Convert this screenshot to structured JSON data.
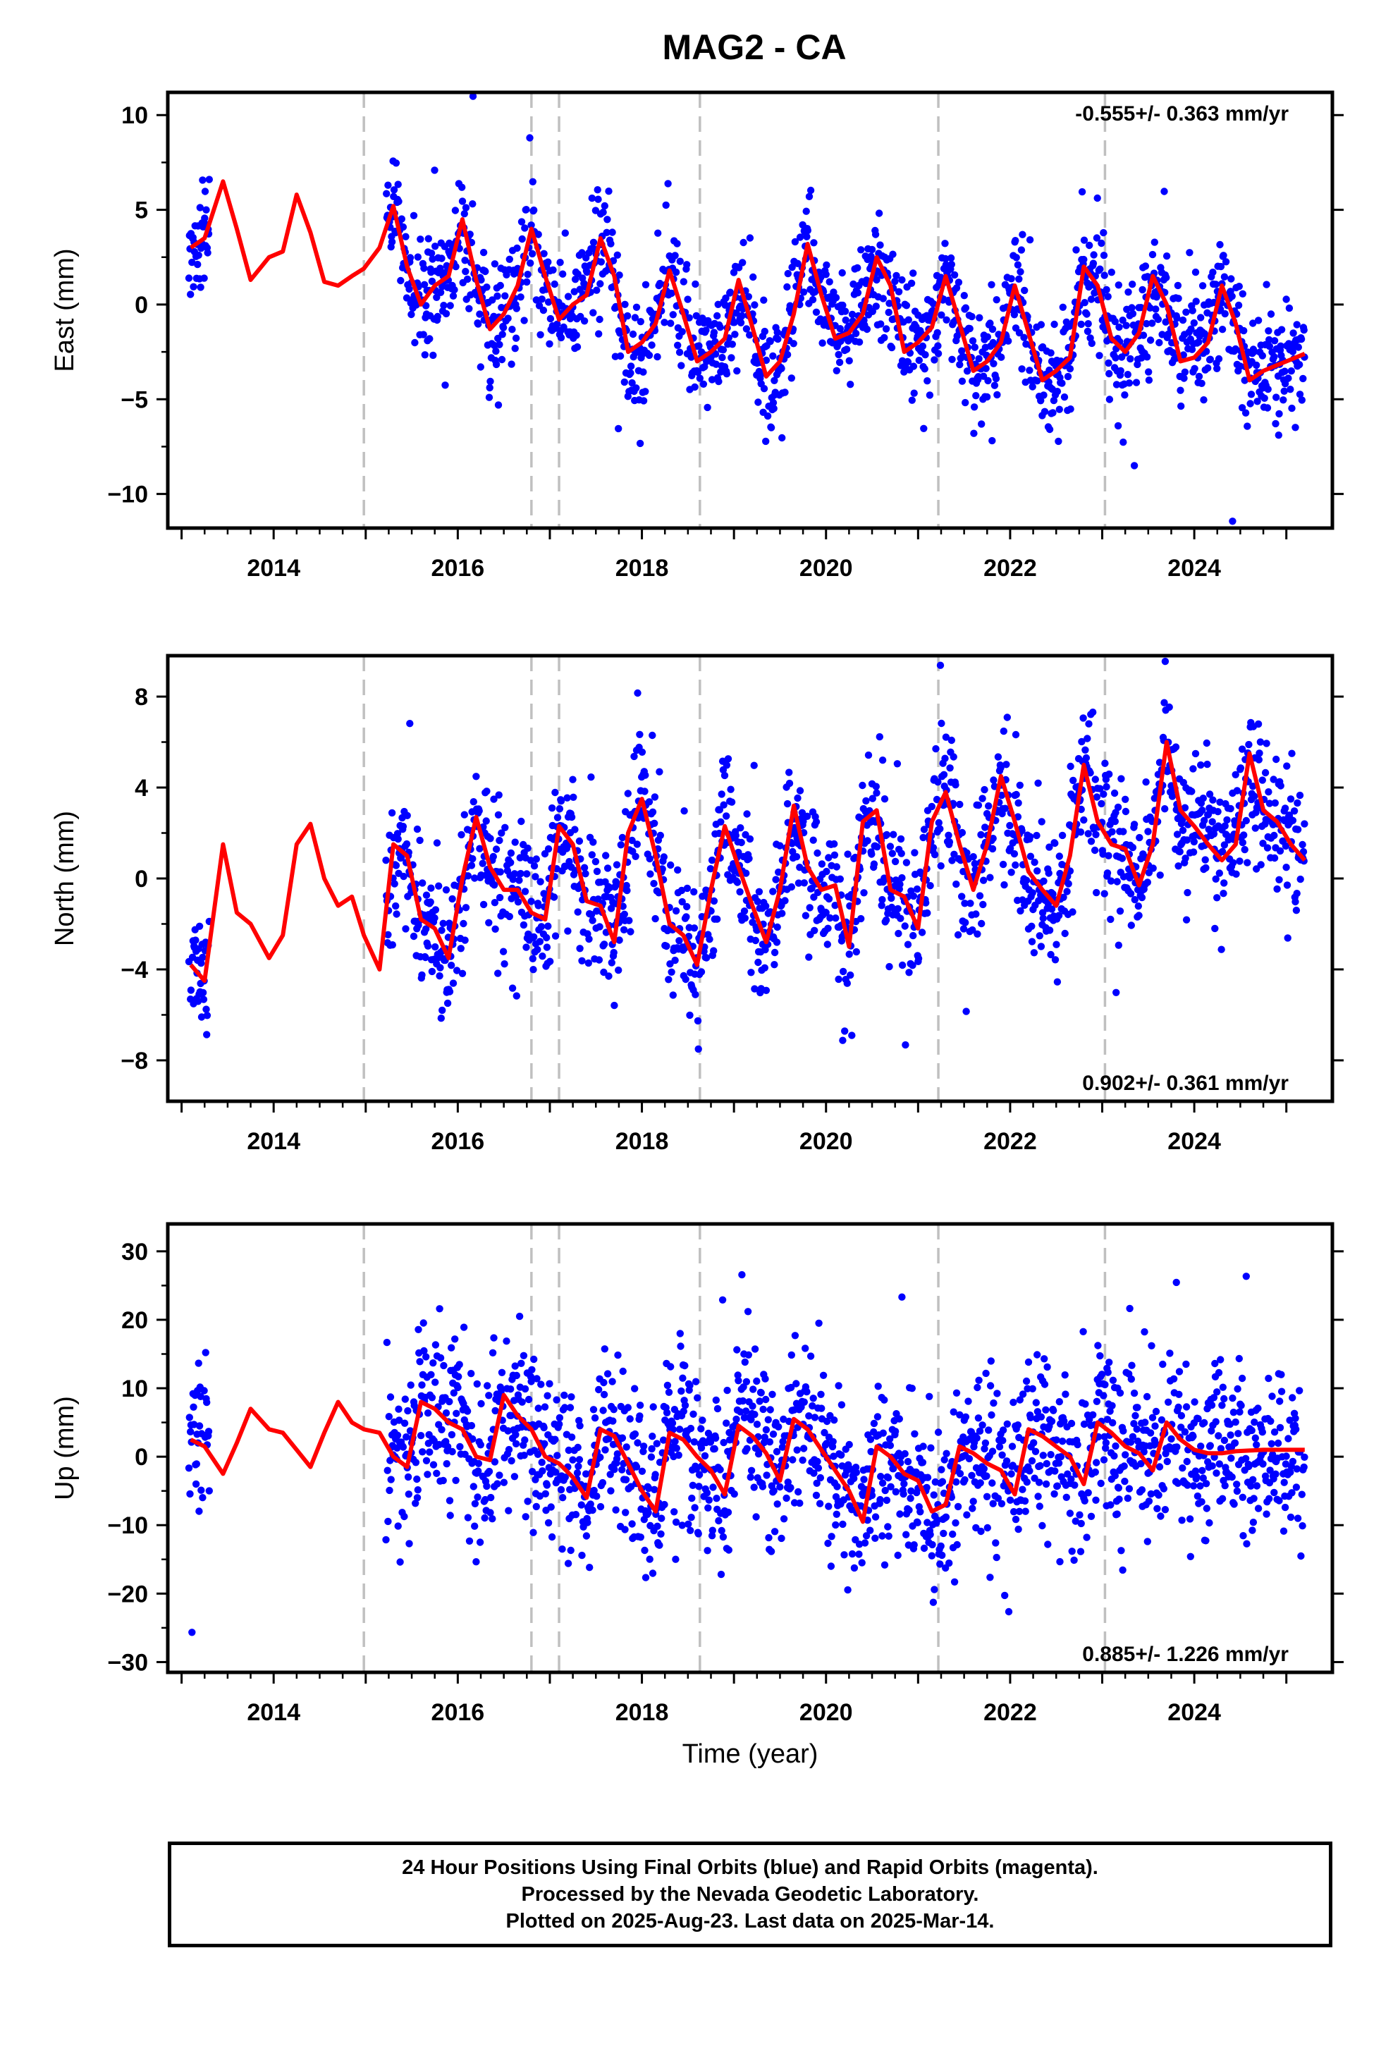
{
  "title": "MAG2 - CA",
  "footer": {
    "line1": "24 Hour Positions Using Final Orbits (blue) and Rapid Orbits (magenta).",
    "line2": "Processed by the Nevada Geodetic Laboratory.",
    "line3": "Plotted on 2025-Aug-23. Last data on 2025-Mar-14."
  },
  "colors": {
    "final_orbits": "#0000ff",
    "model": "#ff0000",
    "steps": "#c0c0c0"
  },
  "chart_data": [
    {
      "type": "scatter",
      "component": "east",
      "ylabel": "East (mm)",
      "xlim": [
        2012.85,
        2025.5
      ],
      "ylim": [
        -11.8,
        11.2
      ],
      "yticks": [
        -10,
        -5,
        0,
        5,
        10
      ],
      "xticks": [
        2014,
        2016,
        2018,
        2020,
        2022,
        2024
      ],
      "rate": "-0.555+/- 0.363 mm/yr",
      "rate_position": "top-right",
      "model": {
        "x": [
          2013.1,
          2013.25,
          2013.45,
          2013.6,
          2013.75,
          2013.95,
          2014.1,
          2014.25,
          2014.4,
          2014.55,
          2014.7,
          2014.85,
          2014.98,
          2015.15,
          2015.3,
          2015.45,
          2015.6,
          2015.75,
          2015.9,
          2016.05,
          2016.2,
          2016.35,
          2016.5,
          2016.65,
          2016.8,
          2016.95,
          2017.1,
          2017.25,
          2017.4,
          2017.55,
          2017.7,
          2017.85,
          2018.0,
          2018.15,
          2018.3,
          2018.45,
          2018.6,
          2018.75,
          2018.9,
          2019.05,
          2019.2,
          2019.35,
          2019.5,
          2019.65,
          2019.8,
          2019.95,
          2020.1,
          2020.25,
          2020.4,
          2020.55,
          2020.7,
          2020.85,
          2021.0,
          2021.15,
          2021.3,
          2021.45,
          2021.6,
          2021.75,
          2021.9,
          2022.05,
          2022.2,
          2022.35,
          2022.5,
          2022.65,
          2022.8,
          2022.95,
          2023.1,
          2023.25,
          2023.4,
          2023.55,
          2023.7,
          2023.85,
          2024.0,
          2024.15,
          2024.3,
          2024.45,
          2024.6,
          2024.75,
          2024.9,
          2025.05,
          2025.2
        ],
        "y": [
          3.0,
          3.5,
          6.5,
          4.0,
          1.3,
          2.5,
          2.8,
          5.8,
          3.8,
          1.2,
          1.0,
          1.5,
          1.9,
          3.0,
          5.2,
          2.0,
          0.0,
          1.0,
          1.5,
          4.5,
          1.3,
          -1.3,
          -0.5,
          1.0,
          4.0,
          1.5,
          -0.8,
          0.0,
          0.5,
          3.5,
          1.5,
          -2.5,
          -2.0,
          -1.0,
          1.8,
          -0.5,
          -3.0,
          -2.5,
          -1.8,
          1.3,
          -1.2,
          -3.8,
          -3.0,
          -0.5,
          3.2,
          0.5,
          -1.8,
          -1.5,
          -0.5,
          2.5,
          1.0,
          -2.5,
          -2.0,
          -1.2,
          1.5,
          -1.0,
          -3.5,
          -3.0,
          -2.0,
          1.0,
          -1.5,
          -4.0,
          -3.5,
          -2.8,
          2.0,
          1.0,
          -1.8,
          -2.5,
          -1.5,
          1.5,
          0.0,
          -3.0,
          -2.8,
          -2.0,
          1.0,
          -1.0,
          -4.0,
          -3.5,
          -3.2,
          -2.9,
          -2.6
        ]
      },
      "steps": [
        2014.98,
        2016.8,
        2017.1,
        2018.63,
        2021.22,
        2023.03
      ]
    },
    {
      "type": "scatter",
      "component": "north",
      "ylabel": "North (mm)",
      "xlim": [
        2012.85,
        2025.5
      ],
      "ylim": [
        -9.8,
        9.8
      ],
      "yticks": [
        -8,
        -4,
        0,
        4,
        8
      ],
      "xticks": [
        2014,
        2016,
        2018,
        2020,
        2022,
        2024
      ],
      "rate": "0.902+/- 0.361 mm/yr",
      "rate_position": "bottom-right",
      "model": {
        "x": [
          2013.1,
          2013.25,
          2013.45,
          2013.6,
          2013.75,
          2013.95,
          2014.1,
          2014.25,
          2014.4,
          2014.55,
          2014.7,
          2014.85,
          2014.98,
          2015.15,
          2015.3,
          2015.45,
          2015.6,
          2015.75,
          2015.9,
          2016.05,
          2016.2,
          2016.35,
          2016.5,
          2016.65,
          2016.8,
          2016.95,
          2017.1,
          2017.25,
          2017.4,
          2017.55,
          2017.7,
          2017.85,
          2018.0,
          2018.15,
          2018.3,
          2018.45,
          2018.6,
          2018.75,
          2018.9,
          2019.05,
          2019.2,
          2019.35,
          2019.5,
          2019.65,
          2019.8,
          2019.95,
          2020.1,
          2020.25,
          2020.4,
          2020.55,
          2020.7,
          2020.85,
          2021.0,
          2021.15,
          2021.3,
          2021.45,
          2021.6,
          2021.75,
          2021.9,
          2022.05,
          2022.2,
          2022.35,
          2022.5,
          2022.65,
          2022.8,
          2022.95,
          2023.1,
          2023.25,
          2023.4,
          2023.55,
          2023.7,
          2023.85,
          2024.0,
          2024.15,
          2024.3,
          2024.45,
          2024.6,
          2024.75,
          2024.9,
          2025.05,
          2025.2
        ],
        "y": [
          -3.8,
          -4.5,
          1.5,
          -1.5,
          -2.0,
          -3.5,
          -2.5,
          1.5,
          2.4,
          0.0,
          -1.2,
          -0.8,
          -2.5,
          -4.0,
          1.5,
          1.0,
          -1.8,
          -2.2,
          -3.5,
          0.0,
          2.7,
          0.5,
          -0.5,
          -0.5,
          -1.5,
          -1.8,
          2.3,
          1.5,
          -1.0,
          -1.2,
          -2.8,
          2.0,
          3.5,
          1.0,
          -2.0,
          -2.5,
          -3.8,
          -0.5,
          2.3,
          0.5,
          -1.2,
          -2.8,
          -0.5,
          3.2,
          0.5,
          -0.5,
          -0.3,
          -3.0,
          2.5,
          3.0,
          -0.5,
          -0.8,
          -2.2,
          2.5,
          3.8,
          1.5,
          -0.5,
          1.5,
          4.5,
          2.5,
          0.3,
          -0.5,
          -1.2,
          1.0,
          5.0,
          2.5,
          1.5,
          1.3,
          -0.3,
          1.5,
          6.0,
          3.0,
          2.3,
          1.5,
          0.8,
          1.5,
          5.5,
          3.0,
          2.5,
          1.5,
          0.8
        ]
      },
      "steps": [
        2014.98,
        2016.8,
        2017.1,
        2018.63,
        2021.22,
        2023.03
      ]
    },
    {
      "type": "scatter",
      "component": "up",
      "ylabel": "Up (mm)",
      "xlabel": "Time (year)",
      "xlim": [
        2012.85,
        2025.5
      ],
      "ylim": [
        -31.5,
        34
      ],
      "yticks": [
        -30,
        -20,
        -10,
        0,
        10,
        20,
        30
      ],
      "xticks": [
        2014,
        2016,
        2018,
        2020,
        2022,
        2024
      ],
      "rate": "0.885+/- 1.226 mm/yr",
      "rate_position": "bottom-right",
      "model": {
        "x": [
          2013.1,
          2013.25,
          2013.45,
          2013.6,
          2013.75,
          2013.95,
          2014.1,
          2014.25,
          2014.4,
          2014.55,
          2014.7,
          2014.85,
          2014.98,
          2015.15,
          2015.3,
          2015.45,
          2015.6,
          2015.75,
          2015.9,
          2016.05,
          2016.2,
          2016.35,
          2016.5,
          2016.65,
          2016.8,
          2016.95,
          2017.1,
          2017.25,
          2017.4,
          2017.55,
          2017.7,
          2017.85,
          2018.0,
          2018.15,
          2018.3,
          2018.45,
          2018.6,
          2018.75,
          2018.9,
          2019.05,
          2019.2,
          2019.35,
          2019.5,
          2019.65,
          2019.8,
          2019.95,
          2020.1,
          2020.25,
          2020.4,
          2020.55,
          2020.7,
          2020.85,
          2021.0,
          2021.15,
          2021.3,
          2021.45,
          2021.6,
          2021.75,
          2021.9,
          2022.05,
          2022.2,
          2022.35,
          2022.5,
          2022.65,
          2022.8,
          2022.95,
          2023.1,
          2023.25,
          2023.4,
          2023.55,
          2023.7,
          2023.85,
          2024.0,
          2024.15,
          2024.3,
          2024.45,
          2024.6,
          2024.75,
          2024.9,
          2025.05,
          2025.2
        ],
        "y": [
          2.5,
          1.5,
          -2.5,
          2.0,
          7.0,
          4.0,
          3.5,
          1.0,
          -1.5,
          3.5,
          8.0,
          5.0,
          4.0,
          3.5,
          0.0,
          -1.5,
          8.0,
          7.0,
          5.0,
          4.0,
          0.0,
          -0.5,
          9.0,
          6.0,
          4.0,
          0.0,
          -1.0,
          -3.0,
          -6.0,
          4.0,
          3.0,
          -1.0,
          -5.0,
          -8.0,
          3.5,
          2.5,
          0.0,
          -2.0,
          -5.5,
          4.5,
          3.0,
          0.5,
          -3.5,
          5.5,
          4.0,
          1.0,
          -2.0,
          -5.0,
          -9.5,
          1.5,
          0.0,
          -2.5,
          -3.5,
          -8.0,
          -7.0,
          1.5,
          0.5,
          -1.0,
          -2.0,
          -5.5,
          4.0,
          3.0,
          1.5,
          0.0,
          -4.0,
          5.0,
          3.5,
          1.5,
          0.5,
          -2.0,
          5.0,
          2.5,
          1.0,
          0.5,
          0.5,
          0.8,
          0.9,
          1.0,
          1.0,
          1.0,
          1.0
        ]
      },
      "steps": [
        2014.98,
        2016.8,
        2017.1,
        2018.63,
        2021.22,
        2023.03
      ]
    }
  ]
}
